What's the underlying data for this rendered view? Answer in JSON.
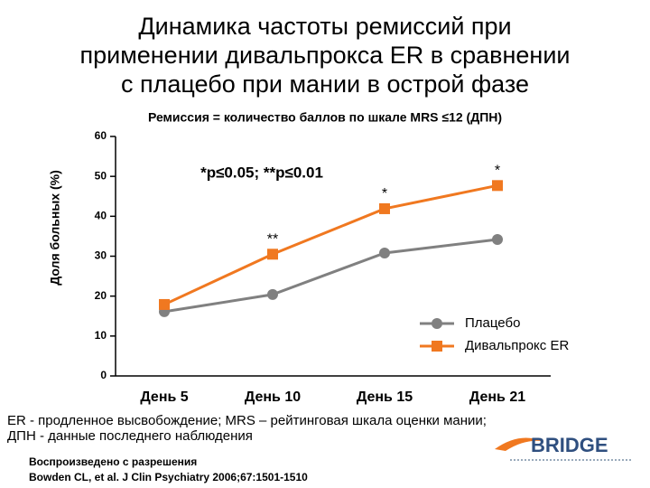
{
  "chart_data": {
    "type": "line",
    "title": [
      "Динамика частоты ремиссий при",
      "применении дивальпрокса ER в сравнении",
      "с плацебо при мании в острой фазе"
    ],
    "subtitle": "Ремиссия = количество баллов по шкале MRS ≤12 (ДПН)",
    "ylabel": "Доля больных (%)",
    "categories": [
      "День 5",
      "День 10",
      "День 15",
      "День 21"
    ],
    "series": [
      {
        "name": "Плацебо",
        "color": "#808080",
        "marker": "circle",
        "values": [
          16.1,
          20.4,
          30.8,
          34.2
        ]
      },
      {
        "name": "Дивальпрокс ER",
        "color": "#f07820",
        "marker": "square",
        "values": [
          17.9,
          30.5,
          41.9,
          47.7
        ]
      }
    ],
    "ylim": [
      0,
      60
    ],
    "yticks": [
      0,
      10,
      20,
      30,
      40,
      50,
      60
    ],
    "significance_note": "*p≤0.05; **p≤0.01",
    "annotations": [
      {
        "text": "**",
        "category": "День 10"
      },
      {
        "text": "*",
        "category": "День 15"
      },
      {
        "text": "*",
        "category": "День 21"
      }
    ],
    "legend": "lower right",
    "footnote": [
      "ER - продленное высвобождение; MRS – рейтинговая шкала оценки мании;",
      "ДПН - данные последнего наблюдения"
    ],
    "source": [
      "Воспроизведено с разрешения",
      "Bowden CL, et al. J Clin Psychiatry 2006;67:1501-1510"
    ],
    "logo": "BRIDGE"
  }
}
